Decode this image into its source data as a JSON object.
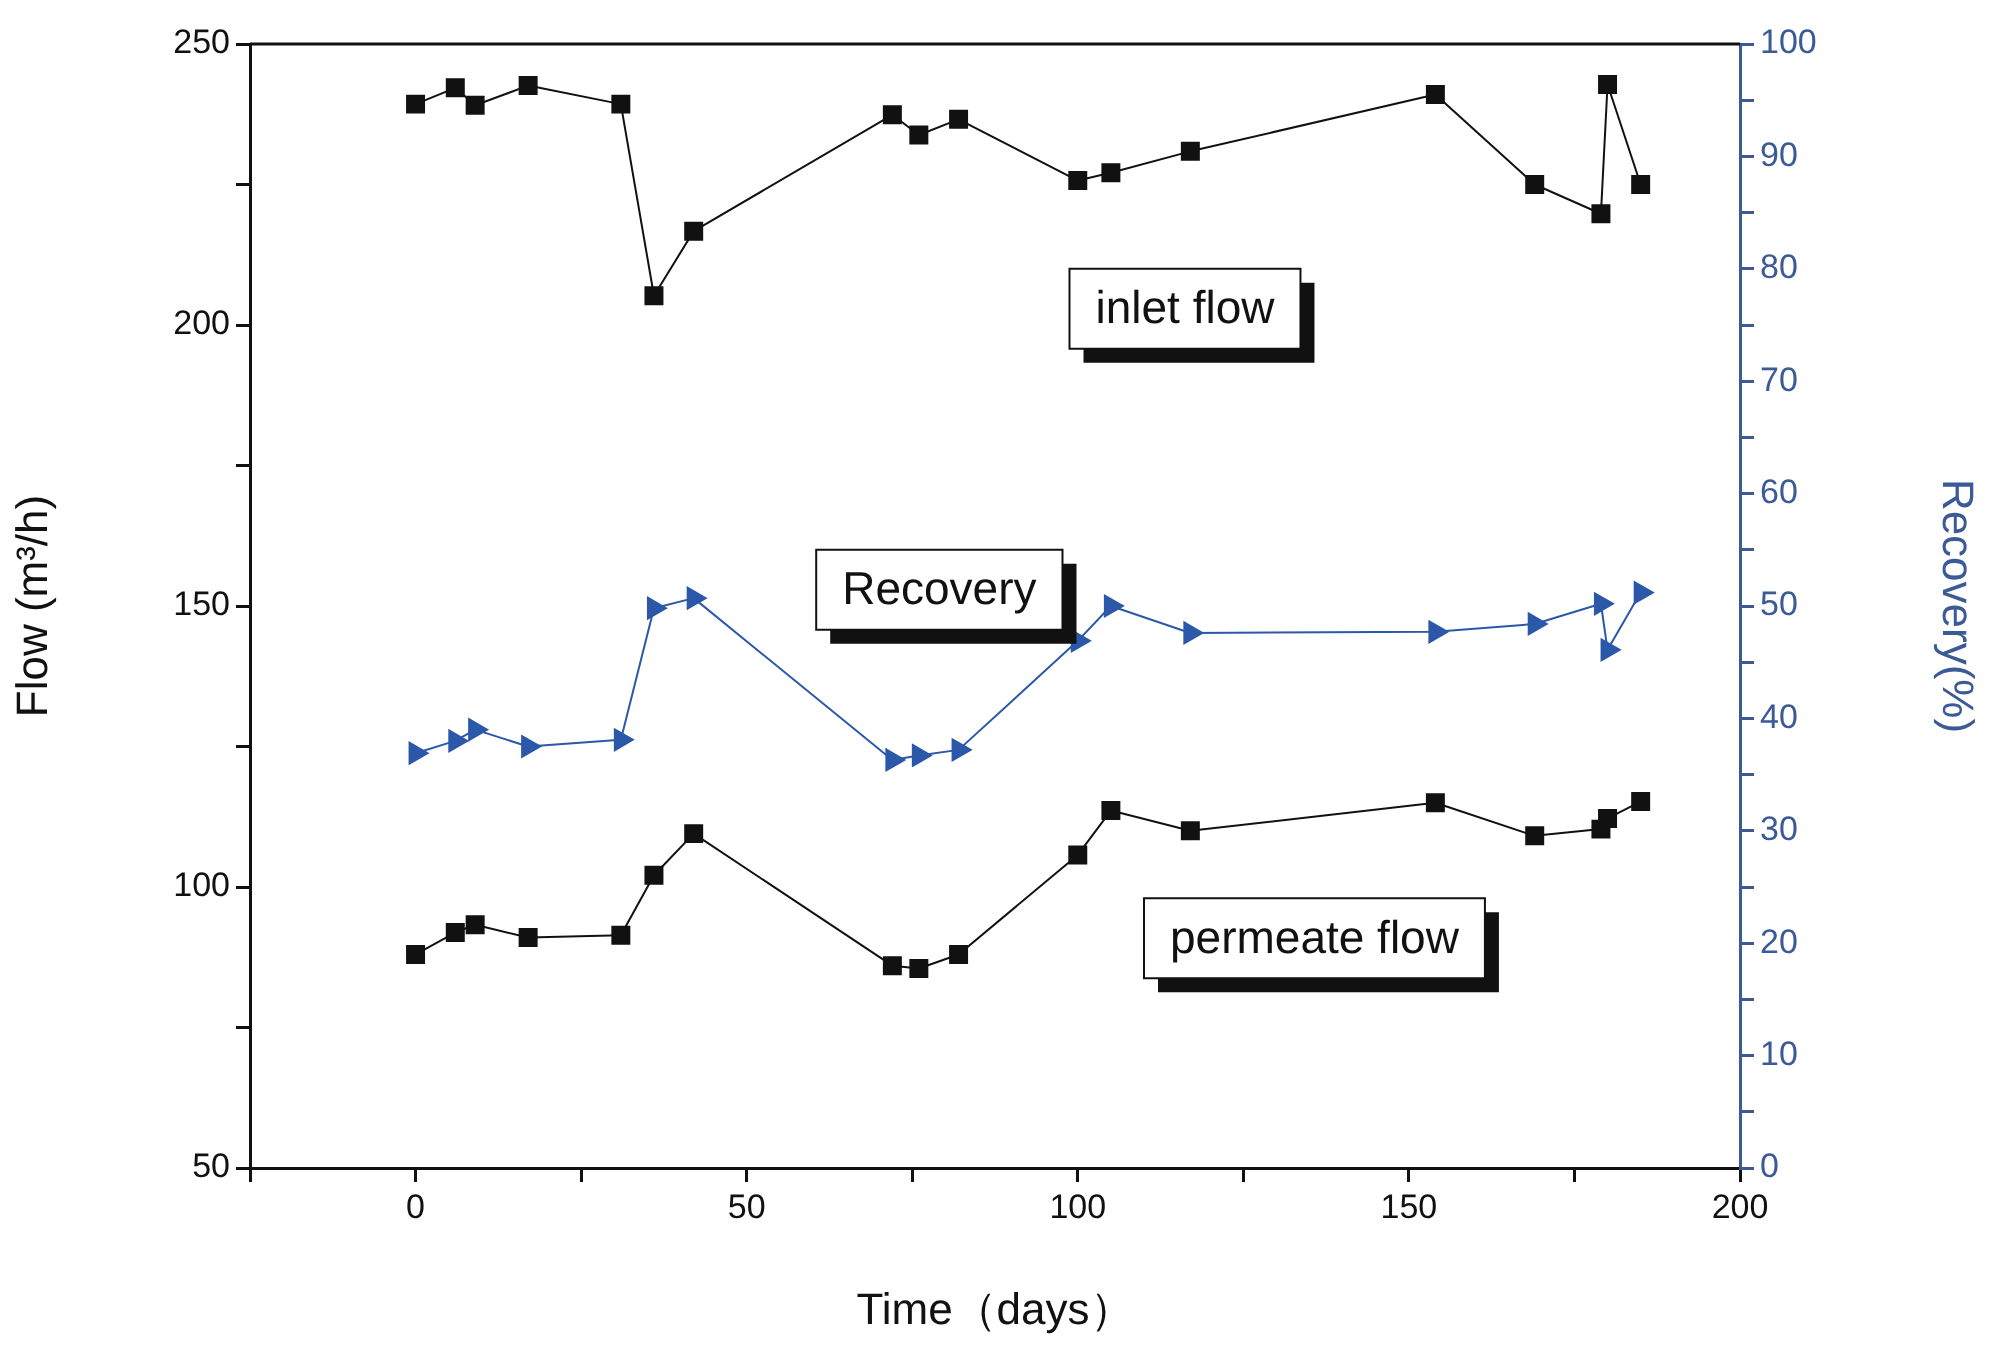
{
  "chart_data": {
    "type": "line",
    "xlabel": "Time（days）",
    "ylabel": "Flow (m³/h)",
    "y2label": "Recovery(%)",
    "x": [
      0,
      6,
      9,
      17,
      31,
      36,
      42,
      72,
      76,
      82,
      100,
      105,
      117,
      154,
      169,
      179,
      180,
      185
    ],
    "series": [
      {
        "name": "inlet flow",
        "color": "#111111",
        "marker": "square",
        "values": [
          239.3,
          242.2,
          239.1,
          242.6,
          239.3,
          205.2,
          216.7,
          237.4,
          233.8,
          236.6,
          225.7,
          227.1,
          230.9,
          241.0,
          225.0,
          219.8,
          242.8,
          225.0
        ]
      },
      {
        "name": "Recovery",
        "color": "#2b58a8",
        "marker": "triangle",
        "axis": "y2",
        "x": [
          0,
          6,
          9,
          17,
          31,
          36,
          42,
          72,
          76,
          82,
          100,
          105,
          117,
          154,
          169,
          179,
          180,
          185
        ],
        "values": [
          36.9,
          38.0,
          39.0,
          37.5,
          38.1,
          49.8,
          50.7,
          36.3,
          36.7,
          37.2,
          46.9,
          50.0,
          47.6,
          47.7,
          48.4,
          50.2,
          46.1,
          51.2
        ]
      },
      {
        "name": "permeate flow",
        "color": "#111111",
        "marker": "square",
        "values": [
          88.0,
          91.9,
          93.3,
          91.0,
          91.4,
          102.1,
          109.5,
          86.0,
          85.5,
          88.0,
          105.7,
          113.6,
          110.0,
          115.0,
          109.1,
          110.3,
          112.2,
          115.2
        ]
      }
    ],
    "xlim": [
      -25,
      200
    ],
    "xticks": [
      {
        "value": -25,
        "label": null
      },
      0,
      {
        "value": 25,
        "label": null
      },
      50,
      {
        "value": 75,
        "label": null
      },
      100,
      {
        "value": 125,
        "label": null
      },
      150,
      {
        "value": 175,
        "label": null
      },
      200
    ],
    "ylim": [
      50,
      250
    ],
    "yticks": [
      50,
      {
        "value": 75,
        "label": null
      },
      100,
      {
        "value": 125,
        "label": null
      },
      150,
      {
        "value": 175,
        "label": null
      },
      200,
      {
        "value": 225,
        "label": null
      },
      250
    ],
    "y2lim": [
      0,
      100
    ],
    "y2ticks": [
      0,
      {
        "value": 5,
        "label": null
      },
      10,
      {
        "value": 15,
        "label": null
      },
      20,
      {
        "value": 25,
        "label": null
      },
      30,
      {
        "value": 35,
        "label": null
      },
      40,
      {
        "value": 45,
        "label": null
      },
      50,
      {
        "value": 55,
        "label": null
      },
      60,
      {
        "value": 65,
        "label": null
      },
      70,
      {
        "value": 75,
        "label": null
      },
      80,
      {
        "value": 85,
        "label": null
      },
      90,
      {
        "value": 95,
        "label": null
      },
      100
    ],
    "grid": false,
    "legend": false,
    "line_style": "solid"
  }
}
